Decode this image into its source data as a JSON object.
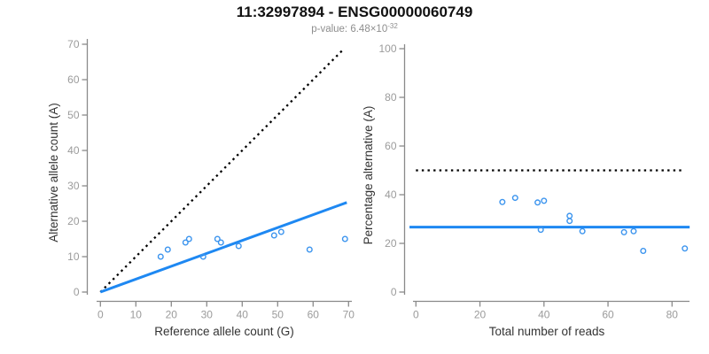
{
  "header": {
    "title": "11:32997894 - ENSG00000060749",
    "p_value_prefix": "p-value: 6.48×10",
    "p_value_exponent": "-32"
  },
  "colors": {
    "fit_line_blue": "#1e88f2",
    "point_blue": "#3b94ee",
    "dotted_black": "#000000",
    "axis_gray": "#8a8a8a",
    "tick_label_gray": "#9b9b9b",
    "axis_label_dark": "#333333"
  },
  "chart_data": [
    {
      "type": "scatter",
      "title": "",
      "xlabel": "Reference allele count (G)",
      "ylabel": "Alternative allele count (A)",
      "xlim": [
        0,
        70
      ],
      "ylim": [
        0,
        70
      ],
      "xticks": [
        0,
        10,
        20,
        30,
        40,
        50,
        60,
        70
      ],
      "yticks": [
        0,
        10,
        20,
        30,
        40,
        50,
        60,
        70
      ],
      "grid": false,
      "points": [
        [
          17,
          10
        ],
        [
          19,
          12
        ],
        [
          24,
          14
        ],
        [
          25,
          15
        ],
        [
          29,
          10
        ],
        [
          33,
          15
        ],
        [
          34,
          14
        ],
        [
          39,
          13
        ],
        [
          49,
          16
        ],
        [
          51,
          17
        ],
        [
          59,
          12
        ],
        [
          69,
          15
        ]
      ],
      "lines": [
        {
          "name": "identity-line-dotted",
          "style": "dotted",
          "color": "#000000",
          "width": 2.3,
          "x1": 0,
          "y1": 0,
          "x2": 68.5,
          "y2": 68.5
        },
        {
          "name": "fit-line-solid",
          "style": "solid",
          "color": "#1e88f2",
          "width": 3,
          "x1": 0,
          "y1": 0,
          "x2": 69.5,
          "y2": 25.3
        }
      ]
    },
    {
      "type": "scatter",
      "title": "",
      "xlabel": "Total number of reads",
      "ylabel": "Percentage alternative (A)",
      "xlim": [
        0,
        85
      ],
      "ylim": [
        0,
        100
      ],
      "xticks": [
        0,
        20,
        40,
        60,
        80
      ],
      "yticks": [
        0,
        20,
        40,
        60,
        80,
        100
      ],
      "grid": false,
      "points": [
        [
          27,
          37.0
        ],
        [
          31,
          38.7
        ],
        [
          38,
          36.8
        ],
        [
          39,
          25.6
        ],
        [
          40,
          37.5
        ],
        [
          48,
          31.3
        ],
        [
          48,
          29.2
        ],
        [
          52,
          25.0
        ],
        [
          65,
          24.6
        ],
        [
          68,
          25.0
        ],
        [
          71,
          16.9
        ],
        [
          84,
          17.9
        ]
      ],
      "lines": [
        {
          "name": "expected-50pct-dotted",
          "style": "dotted",
          "color": "#000000",
          "width": 2.3,
          "x1": 0,
          "y1": 50,
          "x2": 83.5,
          "y2": 50
        },
        {
          "name": "mean-percentage-solid",
          "style": "solid",
          "color": "#1e88f2",
          "width": 3,
          "x1": -2,
          "y1": 26.7,
          "x2": 85.5,
          "y2": 26.7
        }
      ]
    }
  ]
}
